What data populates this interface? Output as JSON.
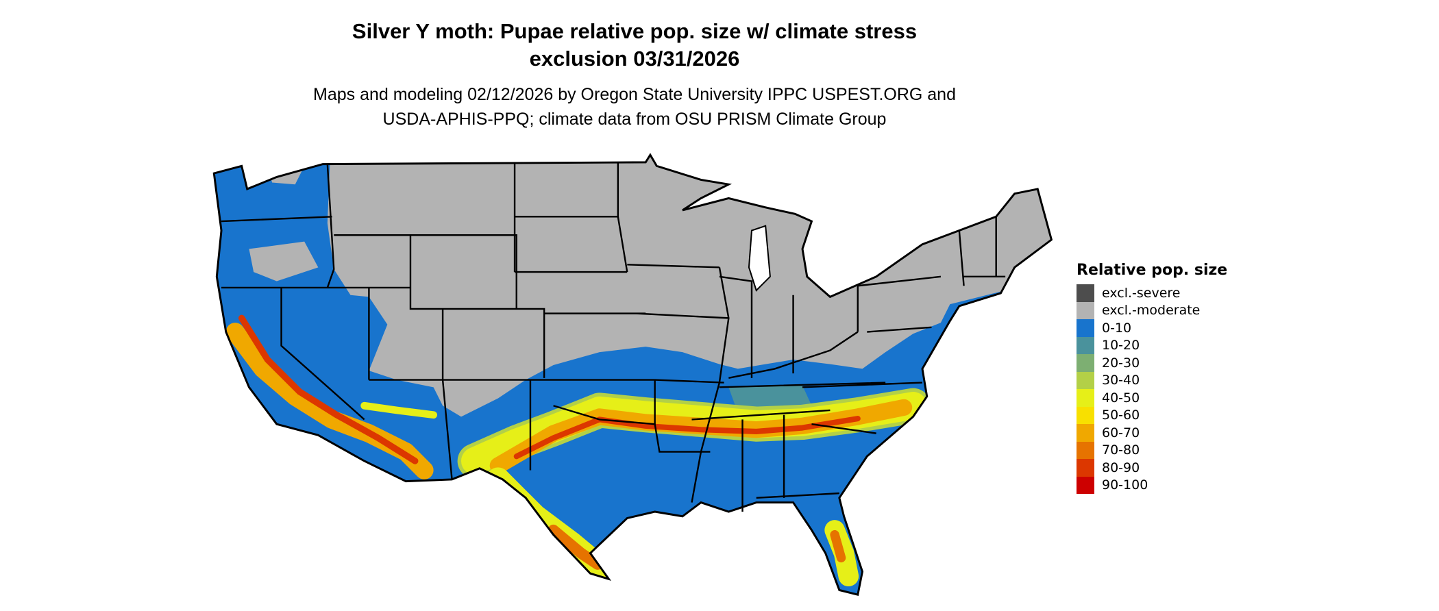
{
  "title": {
    "line1": "Silver Y moth: Pupae relative pop. size w/ climate stress",
    "line2": "exclusion 03/31/2026"
  },
  "subtitle": {
    "line1": "Maps and modeling 02/12/2026 by Oregon State University IPPC USPEST.ORG and",
    "line2": "USDA-APHIS-PPQ; climate data from OSU PRISM Climate Group"
  },
  "legend": {
    "title": "Relative pop. size",
    "items": [
      {
        "label": "excl.-severe",
        "color": "#4d4d4d"
      },
      {
        "label": "excl.-moderate",
        "color": "#b3b3b3"
      },
      {
        "label": "0-10",
        "color": "#1874cd"
      },
      {
        "label": "10-20",
        "color": "#4a929c"
      },
      {
        "label": "20-30",
        "color": "#7daf72"
      },
      {
        "label": "30-40",
        "color": "#b3d047"
      },
      {
        "label": "40-50",
        "color": "#e6ef18"
      },
      {
        "label": "50-60",
        "color": "#f8e000"
      },
      {
        "label": "60-70",
        "color": "#f0a800"
      },
      {
        "label": "70-80",
        "color": "#e67300"
      },
      {
        "label": "80-90",
        "color": "#dc3700"
      },
      {
        "label": "90-100",
        "color": "#cd0000"
      }
    ]
  }
}
